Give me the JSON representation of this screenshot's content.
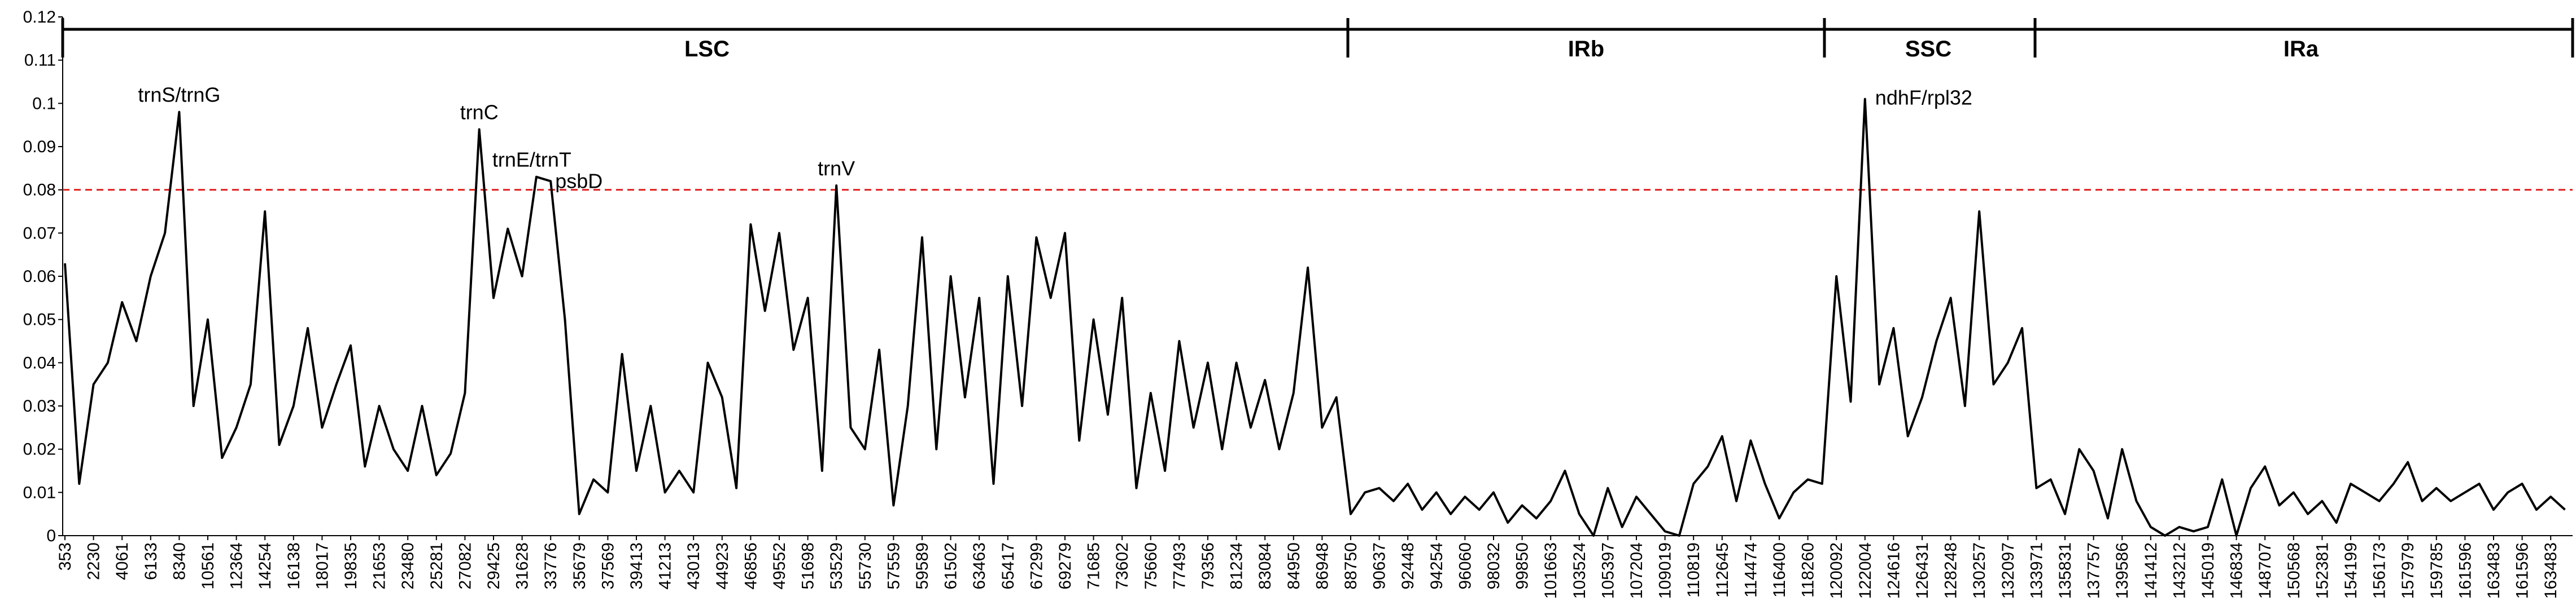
{
  "chart_data": {
    "type": "line",
    "categories": [
      "353",
      null,
      "2230",
      null,
      "4061",
      null,
      "6133",
      null,
      "8340",
      null,
      "10561",
      null,
      "12364",
      null,
      "14254",
      null,
      "16138",
      null,
      "18017",
      null,
      "19835",
      null,
      "21653",
      null,
      "23480",
      null,
      "25281",
      null,
      "27082",
      null,
      "29425",
      null,
      "31628",
      null,
      "33776",
      null,
      "35679",
      null,
      "37569",
      null,
      "39413",
      null,
      "41213",
      null,
      "43013",
      null,
      "44923",
      null,
      "46856",
      null,
      "49552",
      null,
      "51698",
      null,
      "53529",
      null,
      "55730",
      null,
      "57559",
      null,
      "59589",
      null,
      "61502",
      null,
      "63463",
      null,
      "65417",
      null,
      "67299",
      null,
      "69279",
      null,
      "71685",
      null,
      "73602",
      null,
      "75660",
      null,
      "77493",
      null,
      "79356",
      null,
      "81234",
      null,
      "83084",
      null,
      "84950",
      null,
      "86948",
      null,
      "88750",
      null,
      "90637",
      null,
      "92448",
      null,
      "94254",
      null,
      "96060",
      null,
      "98032",
      null,
      "99850",
      null,
      "101663",
      null,
      "103524",
      null,
      "105397",
      null,
      "107204",
      null,
      "109019",
      null,
      "110819",
      null,
      "112645",
      null,
      "114474",
      null,
      "116400",
      null,
      "118260",
      null,
      "120092",
      null,
      "122004",
      null,
      "124616",
      null,
      "126431",
      null,
      "128248",
      null,
      "130257",
      null,
      "132097",
      null,
      "133971",
      null,
      "135831",
      null,
      "137757",
      null,
      "139586",
      null,
      "141412",
      null,
      "143212",
      null,
      "145019",
      null,
      "146834",
      null,
      "148707",
      null,
      "150568",
      null,
      "152381",
      null,
      "154199",
      null,
      "156173",
      null,
      "157979",
      null,
      "159785",
      null,
      "161596",
      null,
      "163483",
      null,
      "161596",
      null,
      "163483",
      null
    ],
    "values": [
      0.063,
      0.012,
      0.035,
      0.04,
      0.054,
      0.045,
      0.06,
      0.07,
      0.098,
      0.03,
      0.05,
      0.018,
      0.025,
      0.035,
      0.075,
      0.021,
      0.03,
      0.048,
      0.025,
      0.035,
      0.044,
      0.016,
      0.03,
      0.02,
      0.015,
      0.03,
      0.014,
      0.019,
      0.033,
      0.094,
      0.055,
      0.071,
      0.06,
      0.083,
      0.082,
      0.05,
      0.005,
      0.013,
      0.01,
      0.042,
      0.015,
      0.03,
      0.01,
      0.015,
      0.01,
      0.04,
      0.032,
      0.011,
      0.072,
      0.052,
      0.07,
      0.043,
      0.055,
      0.015,
      0.081,
      0.025,
      0.02,
      0.043,
      0.007,
      0.03,
      0.069,
      0.02,
      0.06,
      0.032,
      0.055,
      0.012,
      0.06,
      0.03,
      0.069,
      0.055,
      0.07,
      0.022,
      0.05,
      0.028,
      0.055,
      0.011,
      0.033,
      0.015,
      0.045,
      0.025,
      0.04,
      0.02,
      0.04,
      0.025,
      0.036,
      0.02,
      0.033,
      0.062,
      0.025,
      0.032,
      0.005,
      0.01,
      0.011,
      0.008,
      0.012,
      0.006,
      0.01,
      0.005,
      0.009,
      0.006,
      0.01,
      0.003,
      0.007,
      0.004,
      0.008,
      0.015,
      0.005,
      0,
      0.011,
      0.002,
      0.009,
      0.005,
      0.001,
      0,
      0.012,
      0.016,
      0.023,
      0.008,
      0.022,
      0.012,
      0.004,
      0.01,
      0.013,
      0.012,
      0.06,
      0.031,
      0.101,
      0.035,
      0.048,
      0.023,
      0.032,
      0.045,
      0.055,
      0.03,
      0.075,
      0.035,
      0.04,
      0.048,
      0.011,
      0.013,
      0.005,
      0.02,
      0.015,
      0.004,
      0.02,
      0.008,
      0.002,
      0,
      0.002,
      0.001,
      0.002,
      0.013,
      0,
      0.011,
      0.016,
      0.007,
      0.01,
      0.005,
      0.008,
      0.003,
      0.012,
      0.01,
      0.008,
      0.012,
      0.017,
      0.008,
      0.011,
      0.008,
      0.01,
      0.012,
      0.006,
      0.01,
      0.012,
      0.006,
      0.009,
      0.006
    ],
    "color": "#000000",
    "ylim": [
      0,
      0.12
    ],
    "yticks": [
      0,
      0.01,
      0.02,
      0.03,
      0.04,
      0.05,
      0.06,
      0.07,
      0.08,
      0.09,
      0.1,
      0.11,
      0.12
    ],
    "threshold": 0.08,
    "threshold_color": "#e02020",
    "regions": [
      "LSC",
      "IRb",
      "SSC",
      "IRa"
    ],
    "annotations": [
      "trnS/trnG",
      "trnC",
      "trnE/trnT",
      "psbD",
      "trnV",
      "ndhF/rpl32"
    ]
  }
}
